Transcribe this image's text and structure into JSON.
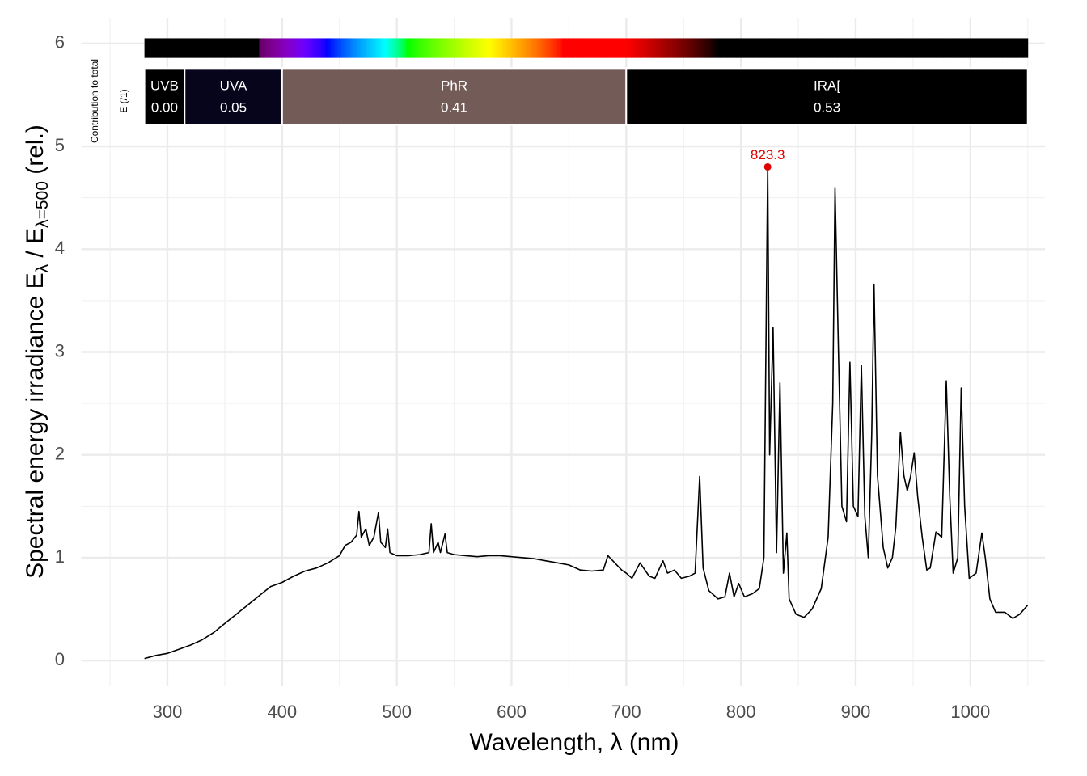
{
  "chart_data": {
    "type": "line",
    "x_label": "Wavelength, λ (nm)",
    "y_label": [
      "Spectral  energy  irradiance  E",
      "λ",
      " / E",
      "λ=500",
      "  (rel.)"
    ],
    "side_labels": [
      "Contribution  to  total",
      "E  (/1)"
    ],
    "xlim": [
      225,
      1065
    ],
    "ylim": [
      -0.25,
      6.25
    ],
    "xticks": [
      300,
      400,
      500,
      600,
      700,
      800,
      900,
      1000
    ],
    "yticks": [
      0,
      1,
      2,
      3,
      4,
      5,
      6
    ],
    "grid": true,
    "series": [
      {
        "name": "spectrum",
        "color": "#000000",
        "x": [
          280,
          290,
          300,
          310,
          320,
          330,
          340,
          350,
          360,
          370,
          380,
          390,
          400,
          410,
          420,
          430,
          440,
          450,
          455,
          460,
          465,
          467,
          469,
          473,
          476,
          480,
          484,
          486,
          490,
          492,
          494,
          500,
          510,
          520,
          528,
          530,
          532,
          536,
          538,
          542,
          544,
          550,
          560,
          570,
          580,
          590,
          600,
          610,
          620,
          630,
          640,
          650,
          660,
          670,
          680,
          684,
          690,
          696,
          700,
          705,
          712,
          720,
          725,
          732,
          736,
          742,
          748,
          755,
          760,
          764,
          767,
          772,
          780,
          786,
          790,
          794,
          798,
          803,
          810,
          816,
          820,
          823.3,
          825,
          828,
          831,
          834,
          837,
          840,
          842,
          848,
          855,
          862,
          870,
          876,
          880,
          882,
          885,
          888,
          892,
          895,
          898,
          902,
          905,
          908,
          911,
          914,
          916,
          919,
          924,
          928,
          932,
          935,
          939,
          942,
          945,
          948,
          951,
          954,
          958,
          962,
          965,
          970,
          975,
          979,
          982,
          985,
          989,
          992,
          995,
          999,
          1005,
          1010,
          1013,
          1017,
          1022,
          1030,
          1037,
          1043,
          1050
        ],
        "values": [
          0.02,
          0.05,
          0.07,
          0.11,
          0.15,
          0.2,
          0.27,
          0.36,
          0.45,
          0.54,
          0.63,
          0.72,
          0.76,
          0.82,
          0.87,
          0.9,
          0.95,
          1.02,
          1.12,
          1.15,
          1.22,
          1.45,
          1.2,
          1.28,
          1.12,
          1.2,
          1.44,
          1.15,
          1.1,
          1.28,
          1.05,
          1.02,
          1.02,
          1.03,
          1.05,
          1.33,
          1.05,
          1.15,
          1.05,
          1.23,
          1.05,
          1.03,
          1.02,
          1.01,
          1.02,
          1.02,
          1.01,
          1.0,
          0.99,
          0.97,
          0.95,
          0.93,
          0.88,
          0.87,
          0.88,
          1.02,
          0.95,
          0.88,
          0.85,
          0.8,
          0.95,
          0.82,
          0.8,
          0.97,
          0.85,
          0.88,
          0.8,
          0.82,
          0.85,
          1.79,
          0.9,
          0.68,
          0.6,
          0.62,
          0.85,
          0.62,
          0.75,
          0.62,
          0.65,
          0.7,
          1.0,
          4.8,
          2.0,
          3.24,
          1.05,
          2.7,
          0.85,
          1.24,
          0.6,
          0.45,
          0.42,
          0.5,
          0.7,
          1.2,
          2.5,
          4.6,
          3.0,
          1.5,
          1.35,
          2.9,
          1.5,
          1.4,
          2.87,
          1.4,
          1.0,
          2.2,
          3.66,
          1.8,
          1.1,
          0.9,
          1.0,
          1.3,
          2.22,
          1.8,
          1.65,
          1.8,
          2.02,
          1.6,
          1.2,
          0.88,
          0.9,
          1.25,
          1.2,
          2.72,
          1.6,
          0.85,
          1.0,
          2.65,
          1.5,
          0.8,
          0.85,
          1.24,
          1.0,
          0.6,
          0.47,
          0.47,
          0.41,
          0.45,
          0.54
        ]
      }
    ],
    "peak": {
      "x": 823.3,
      "y": 4.8,
      "color": "#e00000"
    },
    "wavebands": [
      {
        "name": "UVB",
        "range": [
          280,
          315
        ],
        "value": 0,
        "value_label": "0.00",
        "color": "#000000"
      },
      {
        "name": "UVA",
        "range": [
          315,
          400
        ],
        "value": 0.05,
        "color": "#07051c"
      },
      {
        "name": "PhR",
        "range": [
          400,
          700
        ],
        "value": 0.41,
        "color": "#735c57"
      },
      {
        "name": "IRA[",
        "range": [
          700,
          1050
        ],
        "value": 0.53,
        "color": "#000000"
      }
    ]
  }
}
